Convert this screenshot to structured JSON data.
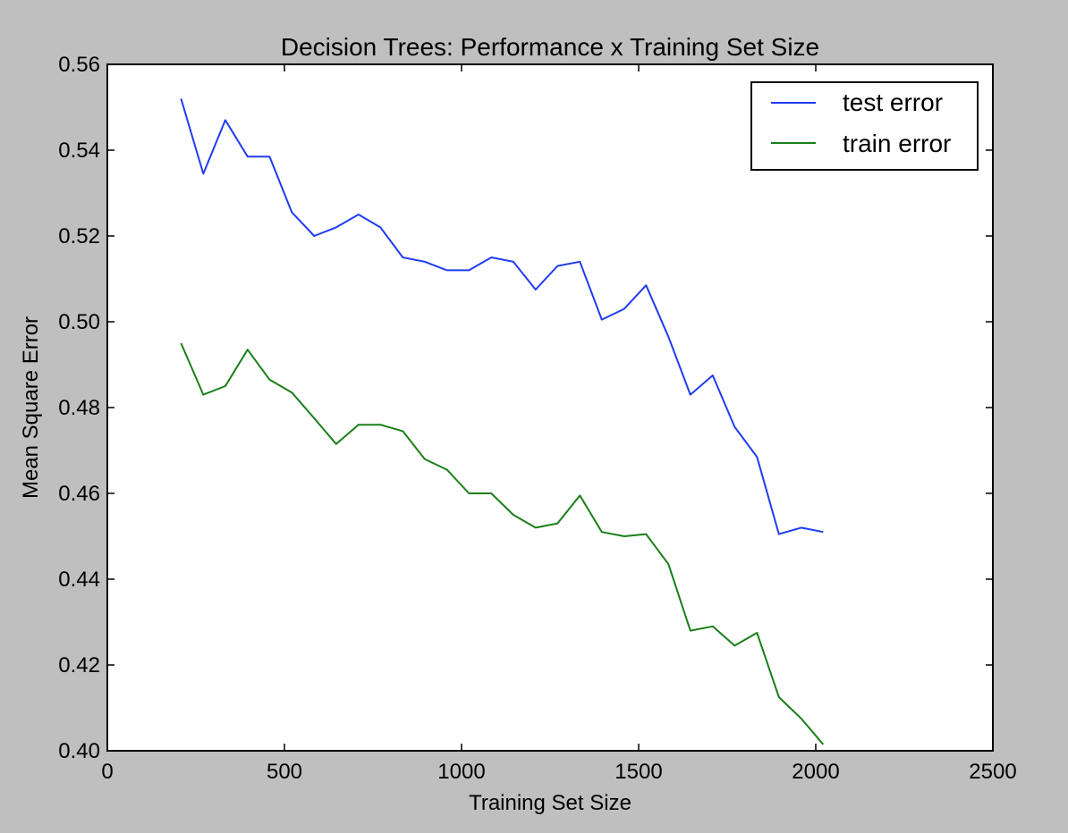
{
  "chart_data": {
    "type": "line",
    "title": "Decision Trees: Performance x Training Set Size",
    "xlabel": "Training Set Size",
    "ylabel": "Mean Square Error",
    "xlim": [
      0,
      2500
    ],
    "ylim": [
      0.4,
      0.56
    ],
    "xticks": [
      0,
      500,
      1000,
      1500,
      2000,
      2500
    ],
    "xtick_labels": [
      "0",
      "500",
      "1000",
      "1500",
      "2000",
      "2500"
    ],
    "yticks": [
      0.4,
      0.42,
      0.44,
      0.46,
      0.48,
      0.5,
      0.52,
      0.54,
      0.56
    ],
    "ytick_labels": [
      "0.40",
      "0.42",
      "0.44",
      "0.46",
      "0.48",
      "0.50",
      "0.52",
      "0.54",
      "0.56"
    ],
    "grid": false,
    "legend_position": "top-right",
    "x": [
      208,
      271,
      333,
      396,
      458,
      521,
      584,
      646,
      709,
      771,
      834,
      896,
      959,
      1021,
      1084,
      1146,
      1209,
      1271,
      1334,
      1396,
      1459,
      1521,
      1584,
      1646,
      1709,
      1771,
      1834,
      1896,
      1959,
      2021
    ],
    "series": [
      {
        "name": "test error",
        "color": "#1f3cf0",
        "values": [
          0.552,
          0.5345,
          0.547,
          0.5385,
          0.5385,
          0.5255,
          0.52,
          0.522,
          0.525,
          0.522,
          0.515,
          0.514,
          0.512,
          0.512,
          0.515,
          0.514,
          0.5075,
          0.513,
          0.514,
          0.5005,
          0.503,
          0.5085,
          0.4965,
          0.483,
          0.4875,
          0.4755,
          0.4685,
          0.4505,
          0.452,
          0.451
        ]
      },
      {
        "name": "train error",
        "color": "#1a7f1a",
        "values": [
          0.495,
          0.483,
          0.485,
          0.4935,
          0.4865,
          0.4835,
          0.4775,
          0.4715,
          0.476,
          0.476,
          0.4745,
          0.468,
          0.4655,
          0.46,
          0.46,
          0.455,
          0.452,
          0.453,
          0.4595,
          0.451,
          0.45,
          0.4505,
          0.4435,
          0.428,
          0.429,
          0.4245,
          0.4275,
          0.4125,
          0.4075,
          0.4015
        ]
      }
    ]
  }
}
